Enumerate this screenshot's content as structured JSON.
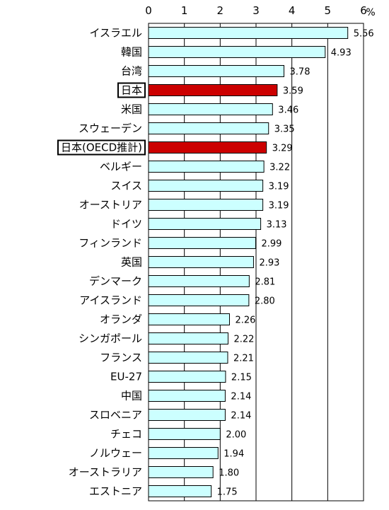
{
  "chart_data": {
    "type": "bar",
    "orientation": "horizontal",
    "unit": "%",
    "xlim": [
      0,
      6
    ],
    "ticks": [
      "0",
      "1",
      "2",
      "3",
      "4",
      "5",
      "6"
    ],
    "grid": "vertical",
    "colors": {
      "default": "#ccffff",
      "highlight": "#cc0000",
      "stroke": "#000000"
    },
    "categories": [
      "イスラエル",
      "韓国",
      "台湾",
      "日本",
      "米国",
      "スウェーデン",
      "日本(OECD推計)",
      "ベルギー",
      "スイス",
      "オーストリア",
      "ドイツ",
      "フィンランド",
      "英国",
      "デンマーク",
      "アイスランド",
      "オランダ",
      "シンガポール",
      "フランス",
      "EU-27",
      "中国",
      "スロベニア",
      "チェコ",
      "ノルウェー",
      "オーストラリア",
      "エストニア"
    ],
    "values": [
      5.56,
      4.93,
      3.78,
      3.59,
      3.46,
      3.35,
      3.29,
      3.22,
      3.19,
      3.19,
      3.13,
      2.99,
      2.93,
      2.81,
      2.8,
      2.26,
      2.22,
      2.21,
      2.15,
      2.14,
      2.14,
      2.0,
      1.94,
      1.8,
      1.75
    ],
    "labels": [
      "5.56",
      "4.93",
      "3.78",
      "3.59",
      "3.46",
      "3.35",
      "3.29",
      "3.22",
      "3.19",
      "3.19",
      "3.13",
      "2.99",
      "2.93",
      "2.81",
      "2.80",
      "2.26",
      "2.22",
      "2.21",
      "2.15",
      "2.14",
      "2.14",
      "2.00",
      "1.94",
      "1.80",
      "1.75"
    ],
    "highlighted": [
      "日本",
      "日本(OECD推計)"
    ]
  }
}
